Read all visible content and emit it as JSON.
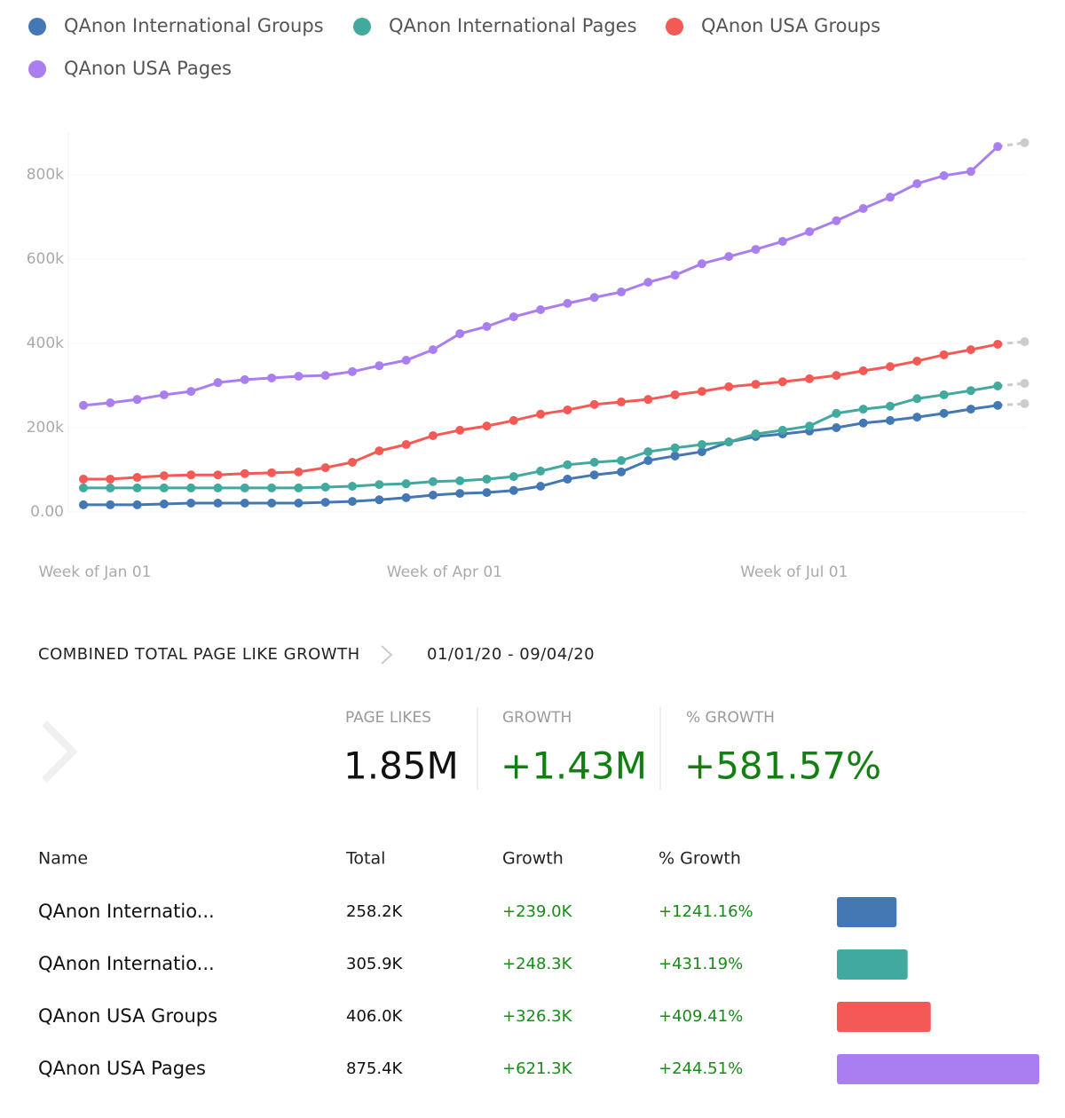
{
  "chart_data": {
    "type": "line",
    "categories": [
      "Week of Jan 01",
      null,
      null,
      null,
      null,
      null,
      null,
      null,
      null,
      null,
      null,
      null,
      null,
      "Week of Apr 01",
      null,
      null,
      null,
      null,
      null,
      null,
      null,
      null,
      null,
      null,
      null,
      null,
      "Week of Jul 01",
      null,
      null,
      null,
      null,
      null,
      null,
      null,
      null,
      null
    ],
    "series": [
      {
        "name": "QAnon International Groups",
        "color": "#4478b5",
        "values": [
          17000,
          17000,
          17000,
          19000,
          21000,
          21000,
          21000,
          21000,
          21000,
          23000,
          25000,
          29000,
          34000,
          40000,
          44000,
          46000,
          51000,
          61000,
          78000,
          88000,
          95000,
          122000,
          133000,
          143000,
          166000,
          179000,
          185000,
          192000,
          200000,
          211000,
          217000,
          225000,
          234000,
          244000,
          253000,
          257000
        ]
      },
      {
        "name": "QAnon International Pages",
        "color": "#41a99e",
        "values": [
          57000,
          57000,
          57000,
          57000,
          57000,
          57000,
          57000,
          57000,
          57000,
          59000,
          61000,
          65000,
          67000,
          72000,
          74000,
          78000,
          84000,
          97000,
          112000,
          118000,
          122000,
          143000,
          152000,
          160000,
          166000,
          185000,
          194000,
          204000,
          234000,
          244000,
          251000,
          269000,
          278000,
          288000,
          299000,
          305000
        ]
      },
      {
        "name": "QAnon USA Groups",
        "color": "#f45a55",
        "values": [
          78000,
          78000,
          82000,
          86000,
          88000,
          88000,
          91000,
          93000,
          95000,
          105000,
          118000,
          145000,
          160000,
          181000,
          194000,
          204000,
          217000,
          232000,
          242000,
          255000,
          261000,
          267000,
          278000,
          286000,
          297000,
          303000,
          309000,
          316000,
          324000,
          335000,
          345000,
          358000,
          373000,
          385000,
          398000,
          404000
        ]
      },
      {
        "name": "QAnon USA Pages",
        "color": "#a97ff0",
        "values": [
          253000,
          259000,
          267000,
          278000,
          286000,
          307000,
          314000,
          318000,
          322000,
          324000,
          333000,
          347000,
          360000,
          385000,
          423000,
          440000,
          463000,
          480000,
          495000,
          509000,
          522000,
          545000,
          562000,
          589000,
          606000,
          623000,
          642000,
          665000,
          691000,
          720000,
          747000,
          779000,
          798000,
          808000,
          867000,
          876000
        ]
      }
    ],
    "ylim": [
      0,
      900000
    ],
    "yticks": [
      {
        "value": 0,
        "label": "0.00"
      },
      {
        "value": 200000,
        "label": "200k"
      },
      {
        "value": 400000,
        "label": "400k"
      },
      {
        "value": 600000,
        "label": "600k"
      },
      {
        "value": 800000,
        "label": "800k"
      }
    ],
    "grid": true,
    "legend": "top",
    "last_point_dashed": true,
    "incomplete_color": "#cccccc"
  },
  "summary": {
    "title": "COMBINED TOTAL PAGE LIKE GROWTH",
    "date_range": "01/01/20 - 09/04/20",
    "kpis": [
      {
        "label": "PAGE LIKES",
        "value": "1.85M"
      },
      {
        "label": "GROWTH",
        "value": "+1.43M"
      },
      {
        "label": "% GROWTH",
        "value": "+581.57%"
      }
    ]
  },
  "table": {
    "columns": [
      "Name",
      "Total",
      "Growth",
      "% Growth"
    ],
    "rows": [
      {
        "name": "QAnon Internatio...",
        "total": "258.2K",
        "growth": "+239.0K",
        "pct_growth": "+1241.16%",
        "total_value": 258200,
        "color": "#4478b5"
      },
      {
        "name": "QAnon Internatio...",
        "total": "305.9K",
        "growth": "+248.3K",
        "pct_growth": "+431.19%",
        "total_value": 305900,
        "color": "#41a99e"
      },
      {
        "name": "QAnon USA Groups",
        "total": "406.0K",
        "growth": "+326.3K",
        "pct_growth": "+409.41%",
        "total_value": 406000,
        "color": "#f45a55"
      },
      {
        "name": "QAnon USA Pages",
        "total": "875.4K",
        "growth": "+621.3K",
        "pct_growth": "+244.51%",
        "total_value": 875400,
        "color": "#a97ff0"
      }
    ]
  }
}
